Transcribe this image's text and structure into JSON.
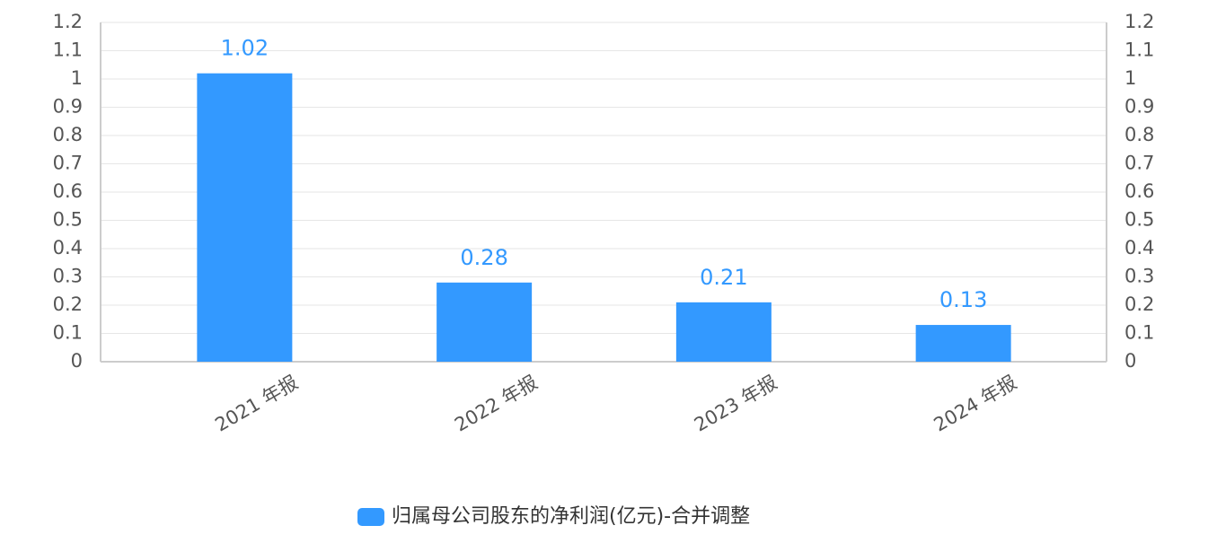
{
  "chart_data": {
    "type": "bar",
    "categories": [
      "2021 年报",
      "2022 年报",
      "2023 年报",
      "2024 年报"
    ],
    "series": [
      {
        "name": "归属母公司股东的净利润(亿元)-合并调整",
        "color": "#3399ff",
        "values": [
          1.02,
          0.28,
          0.21,
          0.13
        ]
      }
    ],
    "ylim": [
      0,
      1.2
    ],
    "yticks": [
      0,
      0.1,
      0.2,
      0.3,
      0.4,
      0.5,
      0.6,
      0.7,
      0.8,
      0.9,
      1,
      1.1,
      1.2
    ],
    "y2lim": [
      0,
      1.2
    ],
    "y2ticks": [
      0,
      0.1,
      0.2,
      0.3,
      0.4,
      0.5,
      0.6,
      0.7,
      0.8,
      0.9,
      1,
      1.1,
      1.2
    ],
    "grid": true,
    "legend": "bottom"
  }
}
